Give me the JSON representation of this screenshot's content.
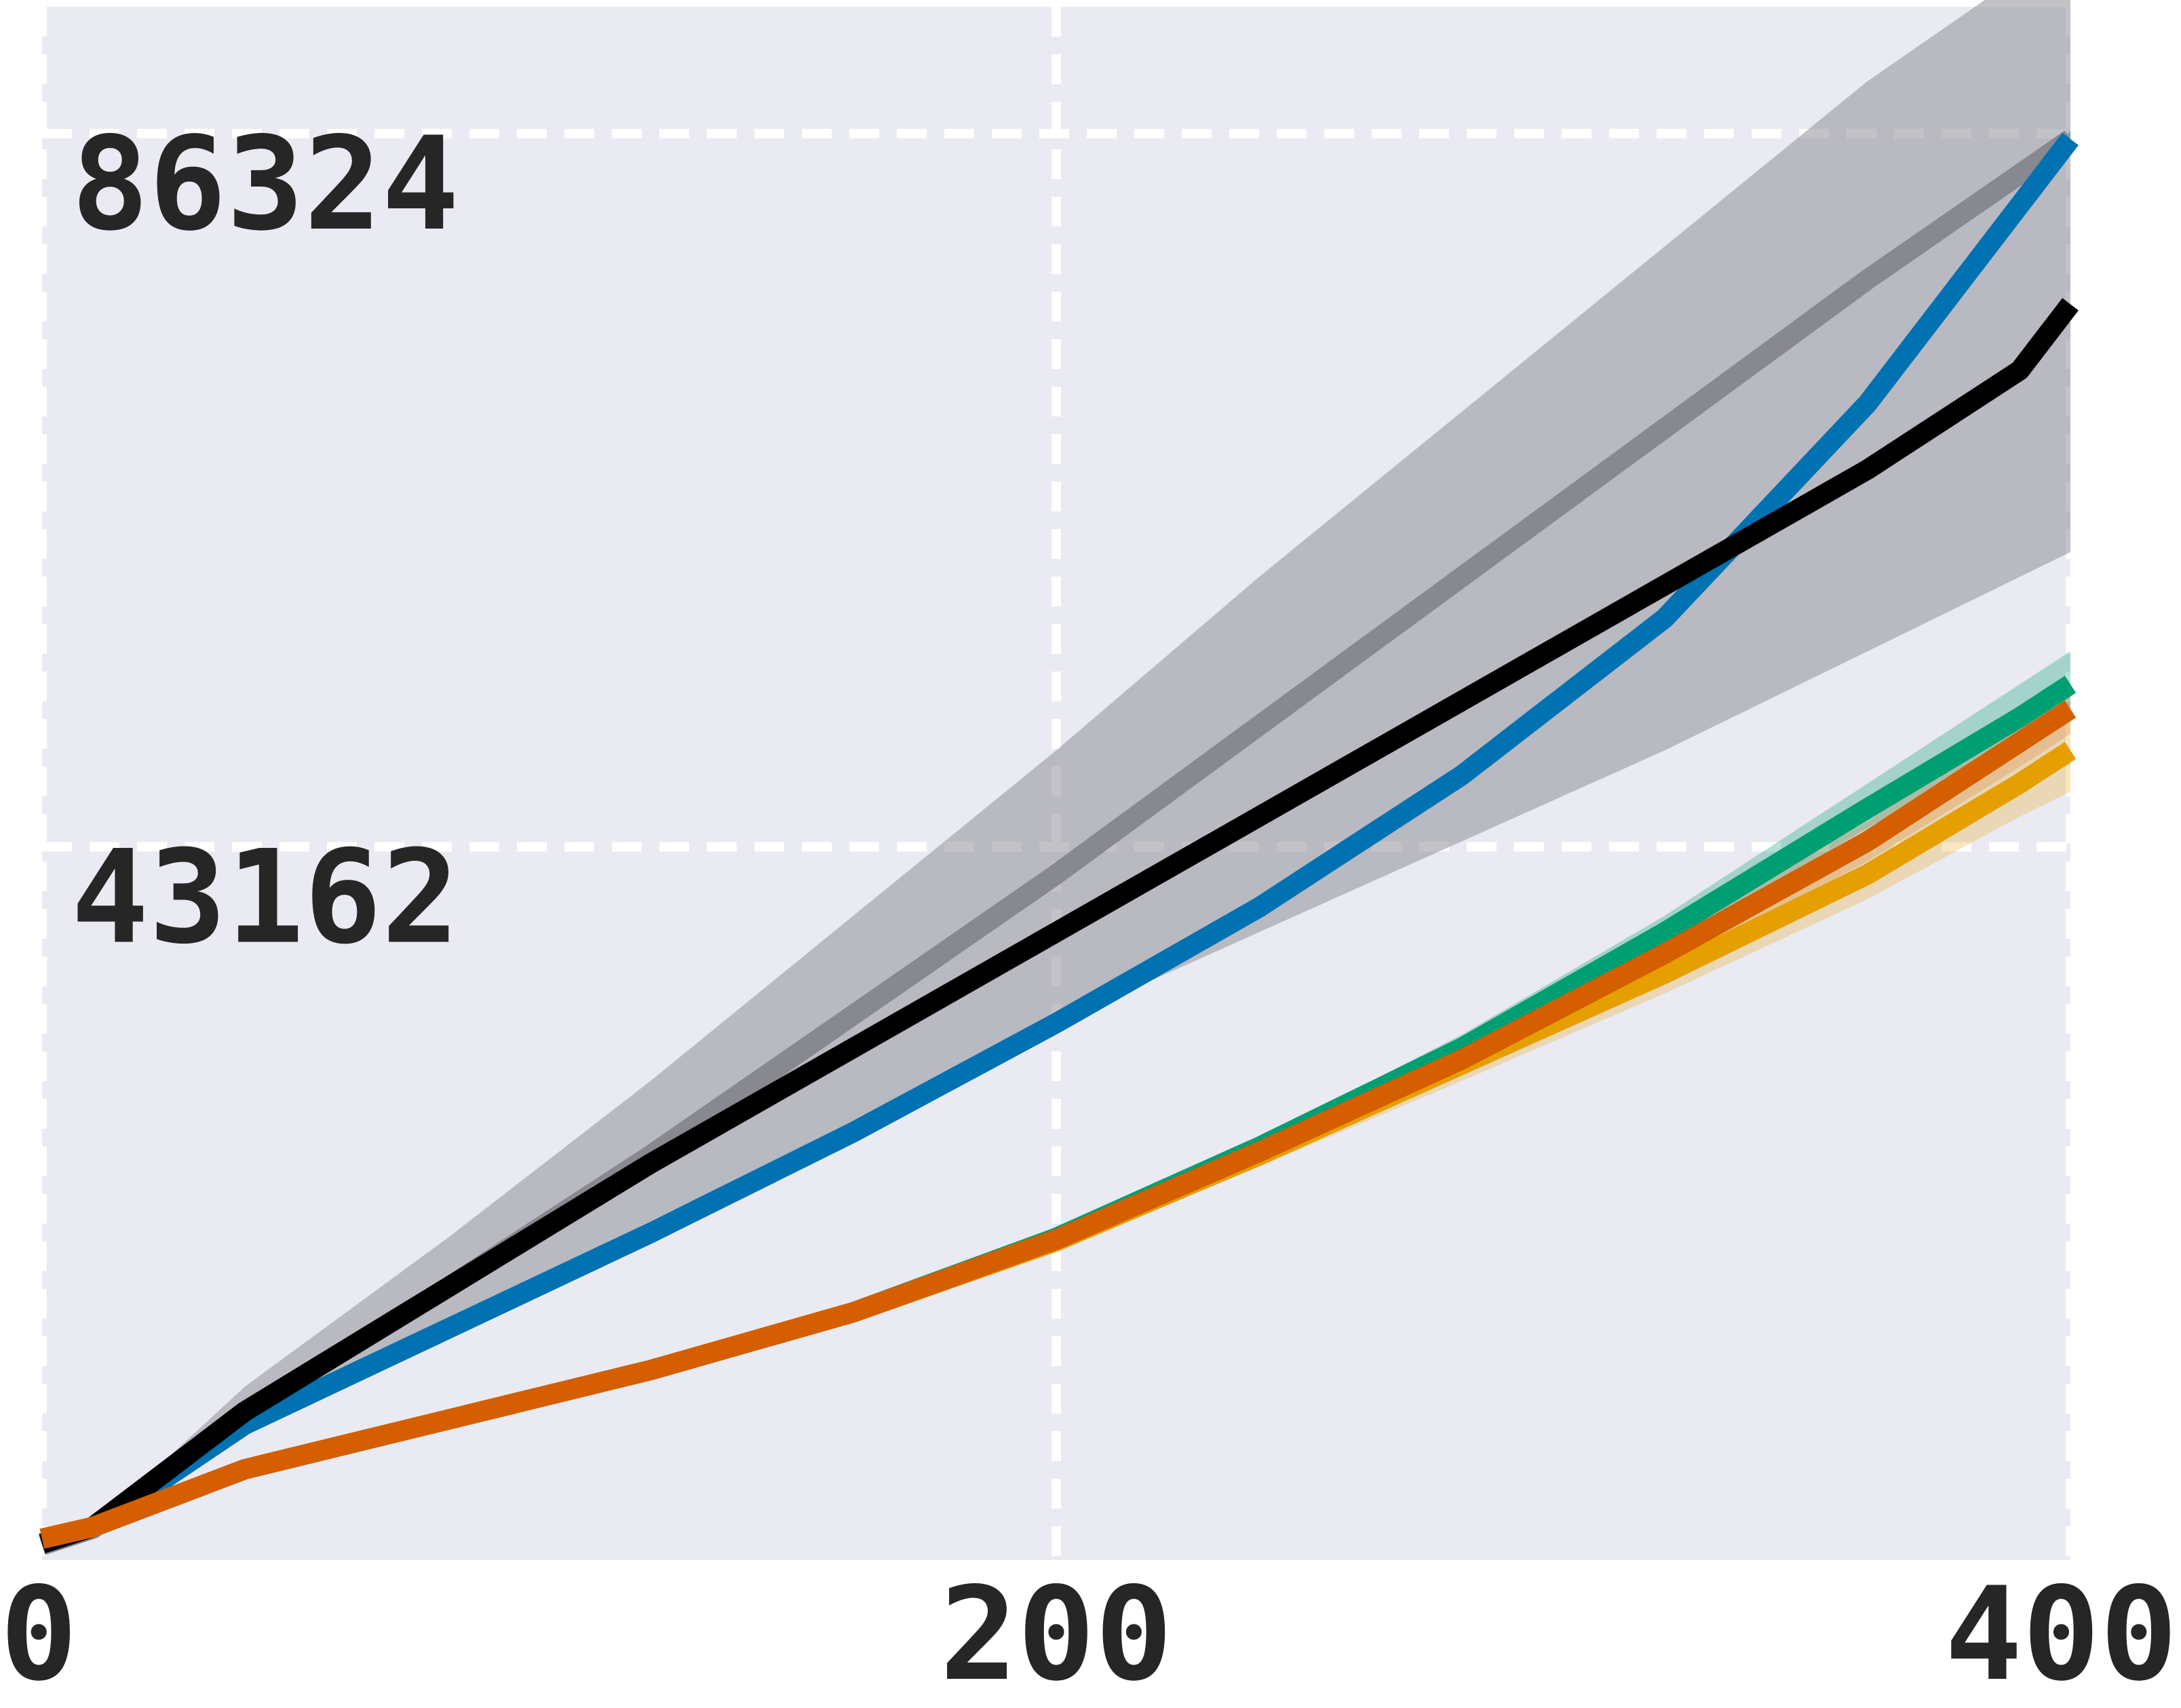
{
  "chart_data": {
    "type": "line",
    "title": "",
    "xlabel": "",
    "ylabel": "",
    "xlim": [
      0,
      400
    ],
    "ylim": [
      0,
      94000
    ],
    "grid": true,
    "background": "#eaeaf2",
    "x_ticks": [
      {
        "value": 0,
        "label": "0"
      },
      {
        "value": 200,
        "label": "200"
      },
      {
        "value": 400,
        "label": "400"
      }
    ],
    "y_ticks": [
      {
        "value": 43162,
        "label": "43162"
      },
      {
        "value": 86324,
        "label": "86324"
      }
    ],
    "series": [
      {
        "color": "#888890",
        "band_opacity": 0.5,
        "x": [
          0,
          10,
          40,
          80,
          120,
          160,
          200,
          240,
          280,
          320,
          360,
          400
        ],
        "y": [
          900,
          1900,
          9000,
          16500,
          24500,
          33000,
          41500,
          50500,
          59500,
          68500,
          77500,
          86000
        ],
        "lower": [
          900,
          1800,
          7500,
          14000,
          20500,
          26500,
          32500,
          38000,
          43500,
          49000,
          55000,
          61000
        ],
        "upper": [
          1000,
          2000,
          10500,
          19500,
          29000,
          39000,
          49000,
          59500,
          69500,
          79500,
          89500,
          98000
        ]
      },
      {
        "color": "#0072b2",
        "band_opacity": 0.4,
        "x": [
          0,
          10,
          40,
          80,
          120,
          160,
          200,
          240,
          280,
          320,
          360,
          390,
          400
        ],
        "y": [
          1000,
          2000,
          8200,
          14000,
          19800,
          25900,
          32500,
          39500,
          47500,
          57000,
          70000,
          82000,
          86000
        ],
        "lower": [
          1000,
          2000,
          8000,
          13800,
          19500,
          25500,
          32000,
          39000,
          47000,
          56500,
          69500,
          81500,
          85500
        ],
        "upper": [
          1000,
          2000,
          8400,
          14200,
          20100,
          26300,
          33000,
          40000,
          48000,
          57500,
          70500,
          82500,
          86500
        ]
      },
      {
        "color": "#000000",
        "band_opacity": 0,
        "x": [
          0,
          10,
          40,
          80,
          120,
          160,
          200,
          240,
          280,
          320,
          360,
          390,
          400
        ],
        "y": [
          1000,
          2000,
          9000,
          16500,
          24000,
          31000,
          38000,
          45000,
          52000,
          59000,
          66000,
          72000,
          76000
        ],
        "lower": [
          1000,
          2000,
          9000,
          16500,
          24000,
          31000,
          38000,
          45000,
          52000,
          59000,
          66000,
          72000,
          76000
        ],
        "upper": [
          1000,
          2000,
          9000,
          16500,
          24000,
          31000,
          38000,
          45000,
          52000,
          59000,
          66000,
          72000,
          76000
        ]
      },
      {
        "color": "#009e73",
        "band_opacity": 0.3,
        "x": [
          0,
          10,
          40,
          80,
          120,
          160,
          200,
          240,
          280,
          320,
          360,
          390,
          400
        ],
        "y": [
          1300,
          2000,
          5500,
          8500,
          11500,
          15000,
          19500,
          25000,
          31000,
          38000,
          45500,
          51000,
          53000
        ],
        "lower": [
          1300,
          2000,
          5400,
          8300,
          11200,
          14600,
          19000,
          24500,
          30300,
          37000,
          44300,
          49500,
          51000
        ],
        "upper": [
          1300,
          2000,
          5600,
          8700,
          11800,
          15400,
          20000,
          25500,
          31800,
          39000,
          47000,
          53000,
          55000
        ]
      },
      {
        "color": "#e69f00",
        "band_opacity": 0.25,
        "x": [
          0,
          10,
          40,
          80,
          120,
          160,
          200,
          240,
          280,
          320,
          360,
          390,
          400
        ],
        "y": [
          1300,
          2000,
          5500,
          8500,
          11500,
          15000,
          19300,
          24500,
          30000,
          35500,
          41500,
          47000,
          49000
        ],
        "lower": [
          1300,
          2000,
          5400,
          8300,
          11200,
          14600,
          18800,
          23800,
          29000,
          34300,
          40000,
          45000,
          46500
        ],
        "upper": [
          1300,
          2000,
          5600,
          8700,
          11800,
          15400,
          19800,
          25200,
          31000,
          36700,
          43000,
          49000,
          51500
        ]
      },
      {
        "color": "#d55e00",
        "band_opacity": 0.2,
        "x": [
          0,
          10,
          40,
          80,
          120,
          160,
          200,
          240,
          280,
          320,
          360,
          390,
          400
        ],
        "y": [
          1300,
          2000,
          5500,
          8500,
          11500,
          15000,
          19400,
          24700,
          30300,
          36700,
          43500,
          49500,
          51500
        ],
        "lower": [
          1300,
          2000,
          5400,
          8300,
          11200,
          14600,
          19000,
          24000,
          29500,
          35700,
          42300,
          48000,
          50000
        ],
        "upper": [
          1300,
          2000,
          5600,
          8700,
          11800,
          15400,
          19800,
          25400,
          31100,
          37700,
          44700,
          51000,
          53000
        ]
      }
    ]
  }
}
